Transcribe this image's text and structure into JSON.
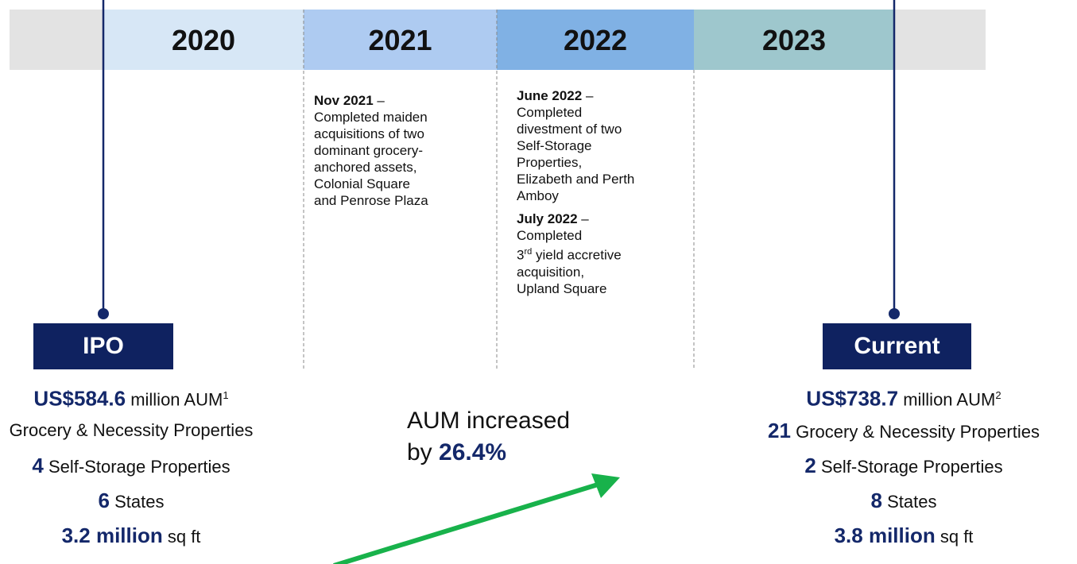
{
  "timeline": {
    "years": [
      "2020",
      "2021",
      "2022",
      "2023"
    ]
  },
  "events": [
    {
      "column": "2021",
      "items": [
        {
          "date": "Nov 2021",
          "separator": "–",
          "lines": [
            "Completed maiden",
            "acquisitions of two",
            "dominant grocery-",
            "anchored assets,",
            "Colonial Square",
            "and Penrose Plaza"
          ]
        }
      ]
    },
    {
      "column": "2022",
      "items": [
        {
          "date": "June 2022",
          "separator": "–",
          "lines": [
            "Completed",
            "divestment of two",
            "Self-Storage",
            "Properties,",
            "Elizabeth and Perth",
            "Amboy"
          ]
        },
        {
          "date": "July 2022",
          "separator": "–",
          "lines": [
            "Completed"
          ],
          "ordinal": "3",
          "suffix": "rd",
          "ordinal_rest": " yield accretive",
          "more_lines": [
            "acquisition,",
            "Upland Square"
          ]
        }
      ]
    }
  ],
  "ipo": {
    "label": "IPO",
    "stats": [
      {
        "value": "US$584.6",
        "text": " million AUM",
        "note": "1"
      },
      {
        "text": "Grocery & Necessity Properties"
      },
      {
        "value": "4",
        "text": " Self-Storage Properties"
      },
      {
        "value": "6",
        "text": " States"
      },
      {
        "value": "3.2 million",
        "text": " sq ft"
      }
    ]
  },
  "current": {
    "label": "Current",
    "stats": [
      {
        "value": "US$738.7",
        "text": " million AUM",
        "note": "2"
      },
      {
        "value": "21",
        "text": " Grocery & Necessity Properties"
      },
      {
        "value": "2",
        "text": " Self-Storage Properties"
      },
      {
        "value": "8",
        "text": " States"
      },
      {
        "value": "3.8 million",
        "text": " sq ft"
      }
    ]
  },
  "growth": {
    "line1": "AUM increased",
    "prefix": "by ",
    "value": "26.4%"
  }
}
